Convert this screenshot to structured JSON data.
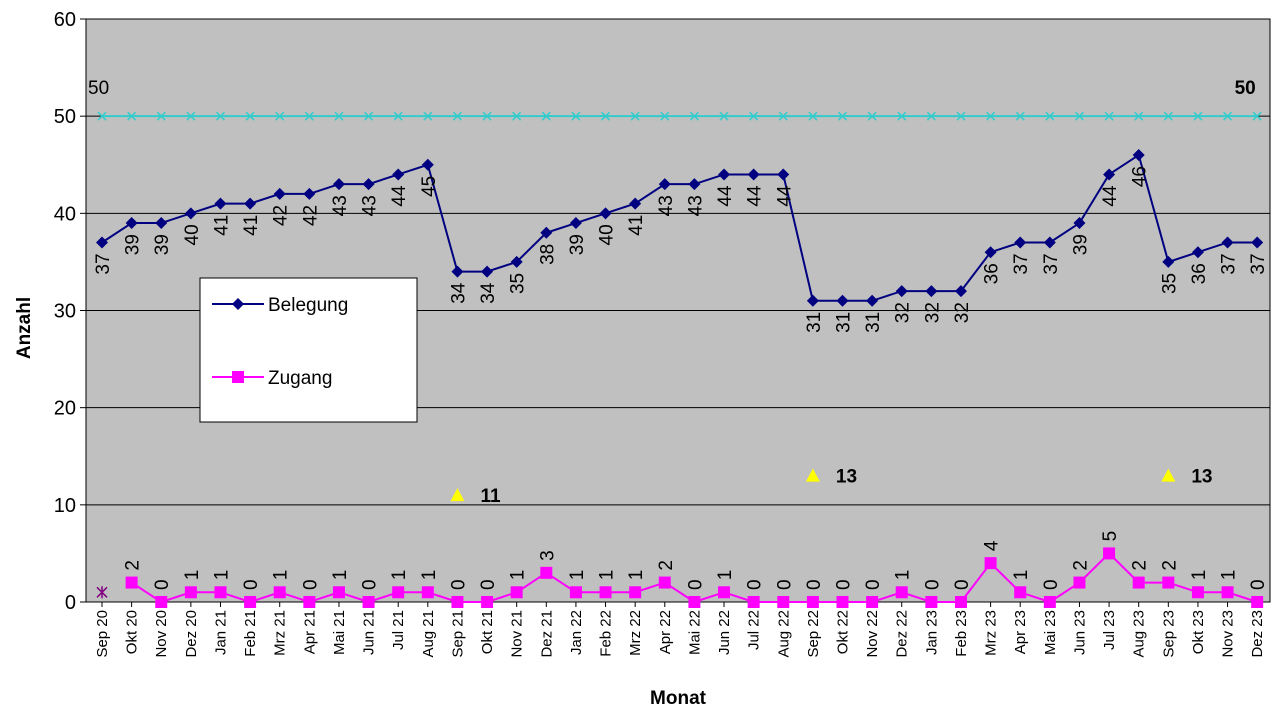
{
  "chart_data": {
    "type": "line",
    "xlabel": "Monat",
    "ylabel": "Anzahl",
    "ylim": [
      0,
      60
    ],
    "yticks": [
      "0",
      "10",
      "20",
      "30",
      "40",
      "50",
      "60"
    ],
    "grid": true,
    "legend_position": "left",
    "categories": [
      "Sep 20",
      "Okt 20",
      "Nov 20",
      "Dez 20",
      "Jan 21",
      "Feb 21",
      "Mrz 21",
      "Apr 21",
      "Mai 21",
      "Jun 21",
      "Jul 21",
      "Aug 21",
      "Sep 21",
      "Okt 21",
      "Nov 21",
      "Dez 21",
      "Jan 22",
      "Feb 22",
      "Mrz 22",
      "Apr 22",
      "Mai 22",
      "Jun 22",
      "Jul 22",
      "Aug 22",
      "Sep 22",
      "Okt 22",
      "Nov 22",
      "Dez 22",
      "Jan 23",
      "Feb 23",
      "Mrz 23",
      "Apr 23",
      "Mai 23",
      "Jun 23",
      "Jul 23",
      "Aug 23",
      "Sep 23",
      "Okt 23",
      "Nov 23",
      "Dez 23"
    ],
    "series": [
      {
        "name": "Belegung",
        "color": "#000080",
        "marker": "diamond",
        "values": [
          37,
          39,
          39,
          40,
          41,
          41,
          42,
          42,
          43,
          43,
          44,
          45,
          34,
          34,
          35,
          38,
          39,
          40,
          41,
          43,
          43,
          44,
          44,
          44,
          31,
          31,
          31,
          32,
          32,
          32,
          36,
          37,
          37,
          39,
          44,
          46,
          35,
          36,
          37,
          37
        ]
      },
      {
        "name": "Zugang",
        "color": "#FF00FF",
        "marker": "square",
        "values": [
          null,
          2,
          0,
          1,
          1,
          0,
          1,
          0,
          1,
          0,
          1,
          1,
          0,
          0,
          1,
          3,
          1,
          1,
          1,
          2,
          0,
          1,
          0,
          0,
          0,
          0,
          0,
          1,
          0,
          0,
          4,
          1,
          0,
          2,
          5,
          2,
          2,
          1,
          1,
          0
        ]
      },
      {
        "name": "",
        "color": "#33CCCC",
        "marker": "x",
        "values": [
          50,
          50,
          50,
          50,
          50,
          50,
          50,
          50,
          50,
          50,
          50,
          50,
          50,
          50,
          50,
          50,
          50,
          50,
          50,
          50,
          50,
          50,
          50,
          50,
          50,
          50,
          50,
          50,
          50,
          50,
          50,
          50,
          50,
          50,
          50,
          50,
          50,
          50,
          50,
          50
        ],
        "labels": {
          "first": "50",
          "last": "50"
        }
      },
      {
        "name": "",
        "color": "#FFFF00",
        "marker": "triangle",
        "points": [
          {
            "index": 12,
            "value": 11,
            "label": "11"
          },
          {
            "index": 24,
            "value": 13,
            "label": "13"
          },
          {
            "index": 36,
            "value": 13,
            "label": "13"
          }
        ]
      },
      {
        "name": "",
        "color": "#800080",
        "marker": "star",
        "points": [
          {
            "index": 0,
            "value": 1
          }
        ]
      }
    ]
  }
}
